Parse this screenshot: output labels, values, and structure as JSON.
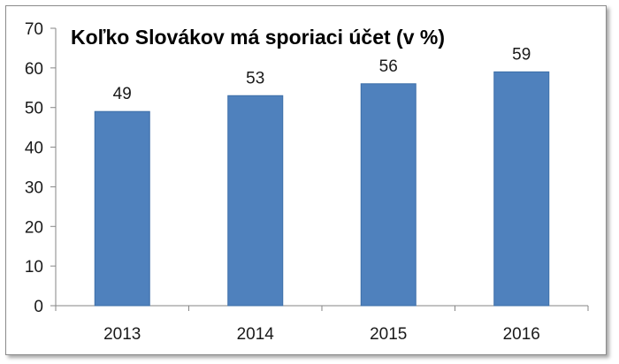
{
  "chart_data": {
    "type": "bar",
    "title": "Koľko Slovákov má sporiaci účet (v %)",
    "xlabel": "",
    "ylabel": "",
    "categories": [
      "2013",
      "2014",
      "2015",
      "2016"
    ],
    "values": [
      49,
      53,
      56,
      59
    ],
    "ylim": [
      0,
      70
    ],
    "yticks": [
      "0",
      "10",
      "20",
      "30",
      "40",
      "50",
      "60",
      "70"
    ],
    "bar_color": "#4f81bd",
    "grid": false,
    "legend": "none"
  }
}
